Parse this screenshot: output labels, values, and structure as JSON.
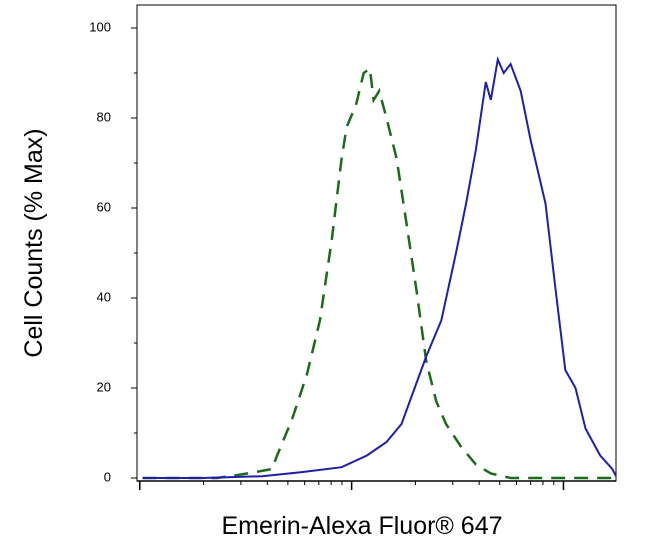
{
  "chart_data": {
    "type": "line",
    "xlabel": "Emerin-Alexa Fluor® 647",
    "ylabel": "Cell Counts (% Max)",
    "xscale": "log",
    "xlim": [
      0.97,
      177
    ],
    "xticks": [
      1,
      10,
      100
    ],
    "xminorticks": [
      2,
      3,
      4,
      5,
      6,
      7,
      8,
      9,
      20,
      30,
      40,
      50,
      60,
      70,
      80,
      90
    ],
    "ylim": [
      0,
      100
    ],
    "yticks": [
      0,
      20,
      40,
      60,
      80,
      100
    ],
    "yminorticks": [
      10,
      30,
      50,
      70,
      90
    ],
    "series": [
      {
        "color": "#1a6b1a",
        "linestyle": "dashed",
        "x": [
          1.03,
          2.32,
          3.21,
          4.21,
          4.45,
          5.23,
          6.15,
          7.08,
          8.06,
          8.97,
          9.48,
          10.5,
          11.4,
          12.2,
          12.7,
          13.5,
          14.6,
          16.3,
          18.1,
          20.2,
          22.5,
          25.1,
          27.9,
          32.8,
          38.6,
          45.4,
          56.3,
          78.0,
          177
        ],
        "values": [
          0,
          0,
          1,
          2,
          5,
          13,
          23,
          35,
          53,
          71,
          78,
          83,
          90,
          91,
          84,
          86,
          80,
          71,
          57,
          42,
          26,
          17,
          12,
          7,
          3,
          1,
          0,
          0,
          0
        ]
      },
      {
        "color": "#1f1fa8",
        "linestyle": "solid",
        "x": [
          1.03,
          1.98,
          3.78,
          5.82,
          8.97,
          11.8,
          14.6,
          17.2,
          20.2,
          22.5,
          26.5,
          31.1,
          34.7,
          38.6,
          43.0,
          45.4,
          49.0,
          52.2,
          56.3,
          62.8,
          70.0,
          82.3,
          91.7,
          102,
          114,
          127,
          149,
          170,
          177
        ],
        "values": [
          0,
          0,
          0.4,
          1.3,
          2.4,
          5,
          8,
          12,
          21,
          27,
          35,
          50,
          61,
          73,
          88,
          84,
          93,
          90,
          92,
          86,
          75,
          61,
          42,
          24,
          20,
          11,
          5,
          2,
          0.4
        ]
      }
    ]
  }
}
